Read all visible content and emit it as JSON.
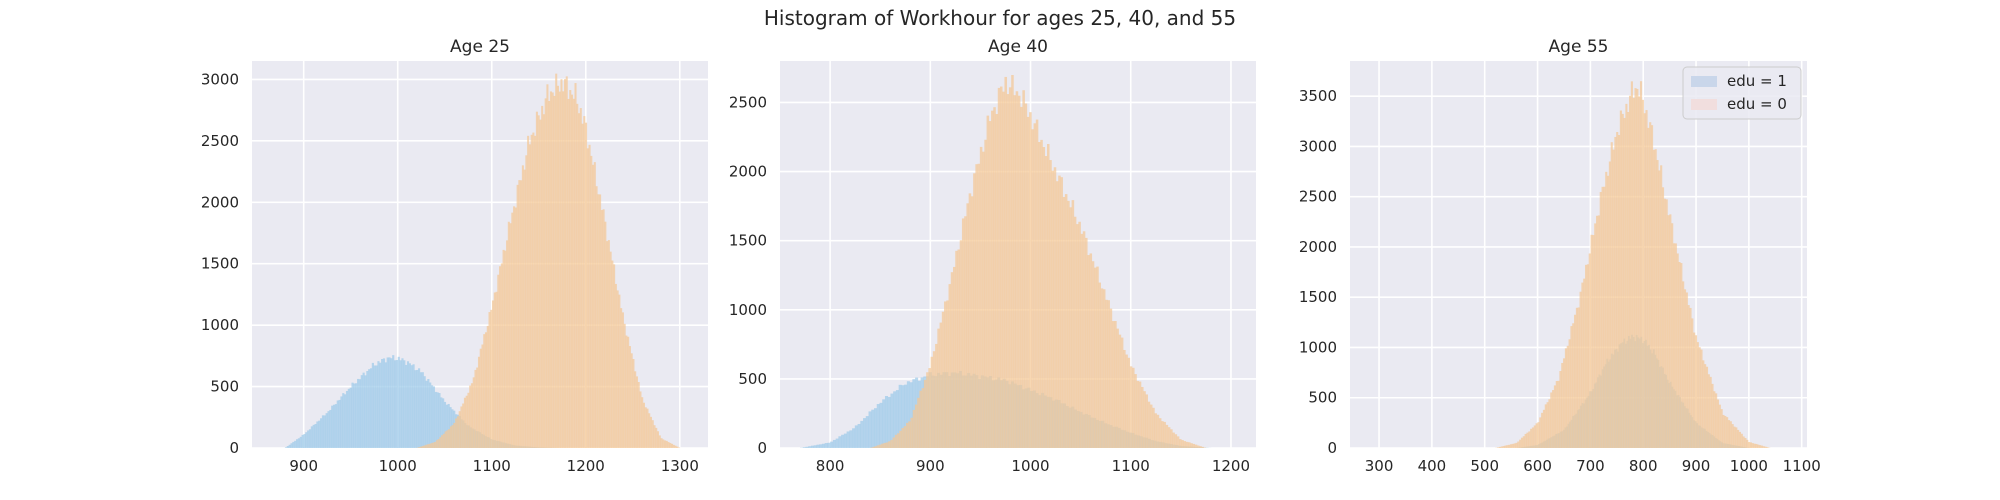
{
  "figure_title": "Histogram of Workhour for ages 25, 40, and 55",
  "colors": {
    "background": "#eaeaf2",
    "grid": "#ffffff",
    "edu1": "#9ecae9",
    "edu0": "#f4c796",
    "legend_edu1": "#c9d6ea",
    "legend_edu0": "#f1dede"
  },
  "chart_data": [
    {
      "type": "histogram",
      "title": "Age 25",
      "xlim": [
        845,
        1330
      ],
      "ylim": [
        0,
        3150
      ],
      "xticks": [
        900,
        1000,
        1100,
        1200,
        1300
      ],
      "yticks": [
        0,
        500,
        1000,
        1500,
        2000,
        2500,
        3000
      ],
      "grid": true,
      "series": [
        {
          "name": "edu = 1",
          "color": "#9ecae9",
          "x": [
            880,
            900,
            925,
            950,
            975,
            990,
            1000,
            1010,
            1025,
            1050,
            1075,
            1100,
            1125,
            1150,
            1175
          ],
          "y": [
            0,
            110,
            290,
            500,
            680,
            735,
            730,
            700,
            620,
            380,
            180,
            70,
            20,
            5,
            0
          ]
        },
        {
          "name": "edu = 0",
          "color": "#f4c796",
          "x": [
            1020,
            1040,
            1060,
            1080,
            1100,
            1120,
            1140,
            1160,
            1175,
            1190,
            1200,
            1220,
            1240,
            1260,
            1280,
            1300
          ],
          "y": [
            0,
            50,
            200,
            550,
            1150,
            1850,
            2500,
            2880,
            2980,
            2850,
            2600,
            1850,
            1050,
            400,
            80,
            0
          ]
        }
      ]
    },
    {
      "type": "histogram",
      "title": "Age 40",
      "xlim": [
        750,
        1225
      ],
      "ylim": [
        0,
        2800
      ],
      "xticks": [
        800,
        900,
        1000,
        1100,
        1200
      ],
      "yticks": [
        0,
        500,
        1000,
        1500,
        2000,
        2500
      ],
      "grid": true,
      "series": [
        {
          "name": "edu = 1",
          "color": "#9ecae9",
          "x": [
            770,
            800,
            825,
            850,
            875,
            900,
            925,
            950,
            975,
            1000,
            1025,
            1050,
            1075,
            1100,
            1125,
            1150,
            1180
          ],
          "y": [
            0,
            40,
            150,
            330,
            470,
            530,
            545,
            520,
            490,
            420,
            350,
            260,
            180,
            110,
            50,
            15,
            0
          ]
        },
        {
          "name": "edu = 0",
          "color": "#f4c796",
          "x": [
            840,
            860,
            880,
            900,
            920,
            940,
            960,
            975,
            990,
            1000,
            1025,
            1050,
            1075,
            1100,
            1125,
            1150,
            1175
          ],
          "y": [
            0,
            50,
            200,
            600,
            1200,
            1850,
            2400,
            2650,
            2550,
            2400,
            2000,
            1600,
            1100,
            600,
            250,
            60,
            0
          ]
        }
      ]
    },
    {
      "type": "histogram",
      "title": "Age 55",
      "xlim": [
        245,
        1110
      ],
      "ylim": [
        0,
        3850
      ],
      "xticks": [
        300,
        400,
        500,
        600,
        700,
        800,
        900,
        1000,
        1100
      ],
      "yticks": [
        0,
        500,
        1000,
        1500,
        2000,
        2500,
        3000,
        3500
      ],
      "grid": true,
      "legend": {
        "position": "upper right",
        "entries": [
          "edu = 1",
          "edu = 0"
        ]
      },
      "series": [
        {
          "name": "edu = 1",
          "color": "#9ecae9",
          "x": [
            560,
            600,
            650,
            700,
            730,
            760,
            780,
            800,
            820,
            850,
            900,
            950,
            1000
          ],
          "y": [
            0,
            30,
            180,
            550,
            850,
            1050,
            1110,
            1080,
            950,
            650,
            250,
            50,
            0
          ]
        },
        {
          "name": "edu = 0",
          "color": "#f4c796",
          "x": [
            520,
            560,
            600,
            640,
            680,
            720,
            750,
            780,
            790,
            800,
            820,
            850,
            900,
            950,
            1000,
            1040
          ],
          "y": [
            0,
            50,
            250,
            700,
            1500,
            2500,
            3150,
            3550,
            3600,
            3450,
            3050,
            2300,
            1100,
            350,
            60,
            0
          ]
        }
      ]
    }
  ]
}
